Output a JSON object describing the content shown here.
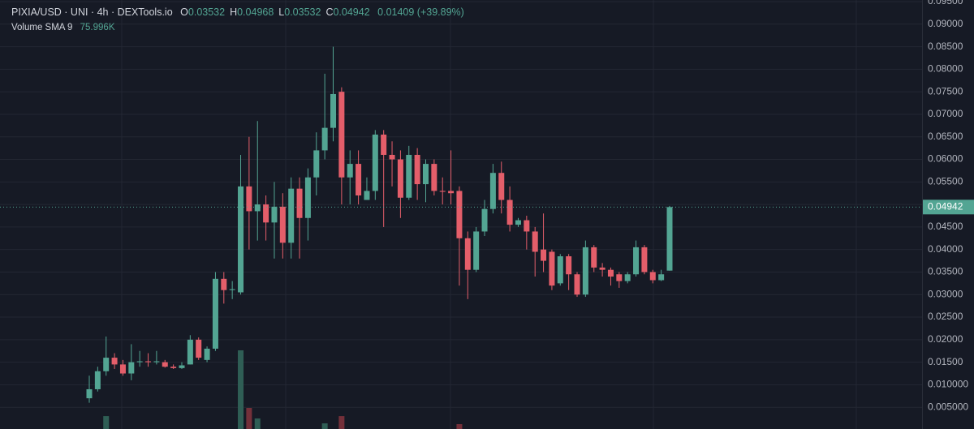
{
  "chart_data": {
    "type": "candlestick",
    "header": {
      "symbol": "PIXIA/USD · UNI · 4h · DEXTools.io",
      "ohlc": [
        {
          "label": "O",
          "value": "0.03532"
        },
        {
          "label": "H",
          "value": "0.04968"
        },
        {
          "label": "L",
          "value": "0.03532"
        },
        {
          "label": "C",
          "value": "0.04942"
        }
      ],
      "change": "0.01409 (+39.89%)",
      "volume_label": "Volume SMA 9",
      "volume_value": "75.996K"
    },
    "last_price_label": "0.04942",
    "up_color": "#53a593",
    "down_color": "#e45e6a",
    "volume_up_color": "#2f5e55",
    "volume_down_color": "#74303a",
    "categories": [
      null,
      null,
      null,
      null,
      null,
      null,
      null,
      null,
      null,
      null,
      null,
      null,
      null,
      null,
      null,
      null,
      null,
      null,
      null,
      null,
      null,
      null,
      null,
      null,
      null,
      null,
      null,
      null,
      null,
      null,
      null,
      null,
      null,
      null,
      null,
      null,
      null,
      null,
      null,
      null,
      null,
      null,
      null,
      null,
      null,
      null,
      null,
      null,
      null,
      null,
      null,
      null,
      null,
      null,
      null,
      null,
      null,
      null,
      null,
      null,
      null,
      null,
      null,
      null,
      null,
      null,
      null,
      null,
      null,
      null
    ],
    "open": [
      0.007,
      0.009,
      0.013,
      0.016,
      0.0145,
      0.0125,
      0.015,
      0.0152,
      0.015,
      0.015,
      0.014,
      0.0137,
      0.0145,
      0.02,
      0.0155,
      0.018,
      0.0335,
      0.031,
      0.0305,
      0.054,
      0.0485,
      0.05,
      0.046,
      0.0495,
      0.0415,
      0.0535,
      0.047,
      0.056,
      0.062,
      0.067,
      0.075,
      0.056,
      0.059,
      0.051,
      0.053,
      0.0655,
      0.061,
      0.06,
      0.0515,
      0.061,
      0.0545,
      0.059,
      0.053,
      0.053,
      0.053,
      0.0425,
      0.0355,
      0.044,
      0.049,
      0.057,
      0.051,
      0.0455,
      0.0465,
      0.044,
      0.04,
      0.0395,
      0.0325,
      0.0385,
      0.0345,
      0.03,
      0.0405,
      0.036,
      0.0355,
      0.0345,
      0.033,
      0.0345,
      0.0405,
      0.035,
      0.0332,
      0.03532
    ],
    "high": [
      0.012,
      0.014,
      0.0207,
      0.017,
      0.0155,
      0.019,
      0.0175,
      0.017,
      0.0175,
      0.0155,
      0.0145,
      0.015,
      0.021,
      0.0205,
      0.0185,
      0.035,
      0.035,
      0.033,
      0.061,
      0.065,
      0.0685,
      0.052,
      0.055,
      0.0525,
      0.056,
      0.056,
      0.058,
      0.066,
      0.079,
      0.085,
      0.076,
      0.062,
      0.062,
      0.056,
      0.0665,
      0.0665,
      0.064,
      0.062,
      0.063,
      0.0625,
      0.06,
      0.06,
      0.056,
      0.062,
      0.054,
      0.044,
      0.045,
      0.051,
      0.059,
      0.0595,
      0.054,
      0.047,
      0.0475,
      0.045,
      0.048,
      0.04,
      0.039,
      0.039,
      0.035,
      0.042,
      0.041,
      0.037,
      0.036,
      0.035,
      0.035,
      0.042,
      0.041,
      0.0355,
      0.0355,
      0.04968
    ],
    "low": [
      0.006,
      0.0085,
      0.012,
      0.0135,
      0.012,
      0.011,
      0.014,
      0.014,
      0.0145,
      0.0138,
      0.0135,
      0.0135,
      0.0145,
      0.0155,
      0.015,
      0.0175,
      0.028,
      0.029,
      0.03,
      0.04,
      0.042,
      0.042,
      0.038,
      0.038,
      0.038,
      0.038,
      0.042,
      0.052,
      0.06,
      0.064,
      0.05,
      0.05,
      0.05,
      0.051,
      0.051,
      0.045,
      0.054,
      0.047,
      0.051,
      0.051,
      0.0505,
      0.052,
      0.05,
      0.05,
      0.032,
      0.029,
      0.035,
      0.043,
      0.048,
      0.048,
      0.044,
      0.045,
      0.04,
      0.034,
      0.035,
      0.031,
      0.032,
      0.031,
      0.0295,
      0.0295,
      0.035,
      0.034,
      0.032,
      0.0315,
      0.0325,
      0.034,
      0.0345,
      0.0325,
      0.033,
      0.03532
    ],
    "close": [
      0.009,
      0.013,
      0.016,
      0.0145,
      0.0125,
      0.015,
      0.0152,
      0.015,
      0.0152,
      0.014,
      0.0137,
      0.0143,
      0.02,
      0.016,
      0.018,
      0.0335,
      0.031,
      0.0312,
      0.054,
      0.0485,
      0.05,
      0.046,
      0.0495,
      0.0415,
      0.0535,
      0.047,
      0.056,
      0.062,
      0.067,
      0.0745,
      0.056,
      0.059,
      0.052,
      0.053,
      0.0655,
      0.061,
      0.06,
      0.0515,
      0.061,
      0.0545,
      0.059,
      0.053,
      0.0528,
      0.0525,
      0.0425,
      0.0355,
      0.044,
      0.049,
      0.057,
      0.051,
      0.0455,
      0.0465,
      0.044,
      0.0395,
      0.0375,
      0.032,
      0.0385,
      0.0345,
      0.03,
      0.0405,
      0.036,
      0.0355,
      0.034,
      0.033,
      0.0345,
      0.0405,
      0.035,
      0.0332,
      0.0345,
      0.04942
    ],
    "volume": [
      null,
      null,
      82000,
      null,
      null,
      null,
      null,
      null,
      null,
      null,
      null,
      null,
      null,
      null,
      null,
      null,
      null,
      null,
      500000,
      134000,
      67000,
      null,
      null,
      null,
      null,
      null,
      null,
      null,
      36000,
      null,
      82000,
      null,
      null,
      null,
      null,
      null,
      null,
      null,
      null,
      null,
      null,
      null,
      null,
      null,
      31000,
      null,
      null,
      null,
      null,
      null,
      null,
      null,
      null,
      null,
      null,
      null,
      null,
      null,
      null,
      null,
      null,
      null,
      null,
      null,
      null,
      null,
      null,
      null,
      null,
      null
    ],
    "ylim": [
      0,
      0.095
    ],
    "yticks": [
      {
        "value": 0.095,
        "label": "0.09500"
      },
      {
        "value": 0.09,
        "label": "0.09000"
      },
      {
        "value": 0.085,
        "label": "0.08500"
      },
      {
        "value": 0.08,
        "label": "0.08000"
      },
      {
        "value": 0.075,
        "label": "0.07500"
      },
      {
        "value": 0.07,
        "label": "0.07000"
      },
      {
        "value": 0.065,
        "label": "0.06500"
      },
      {
        "value": 0.06,
        "label": "0.06000"
      },
      {
        "value": 0.055,
        "label": "0.05500"
      },
      {
        "value": 0.05,
        "label": "0.05000"
      },
      {
        "value": 0.045,
        "label": "0.04500"
      },
      {
        "value": 0.04,
        "label": "0.04000"
      },
      {
        "value": 0.035,
        "label": "0.03500"
      },
      {
        "value": 0.03,
        "label": "0.03000"
      },
      {
        "value": 0.025,
        "label": "0.02500"
      },
      {
        "value": 0.02,
        "label": "0.02000"
      },
      {
        "value": 0.015,
        "label": "0.01500"
      },
      {
        "value": 0.01,
        "label": "0.010000"
      },
      {
        "value": 0.005,
        "label": "0.005000"
      }
    ],
    "grid": true
  }
}
